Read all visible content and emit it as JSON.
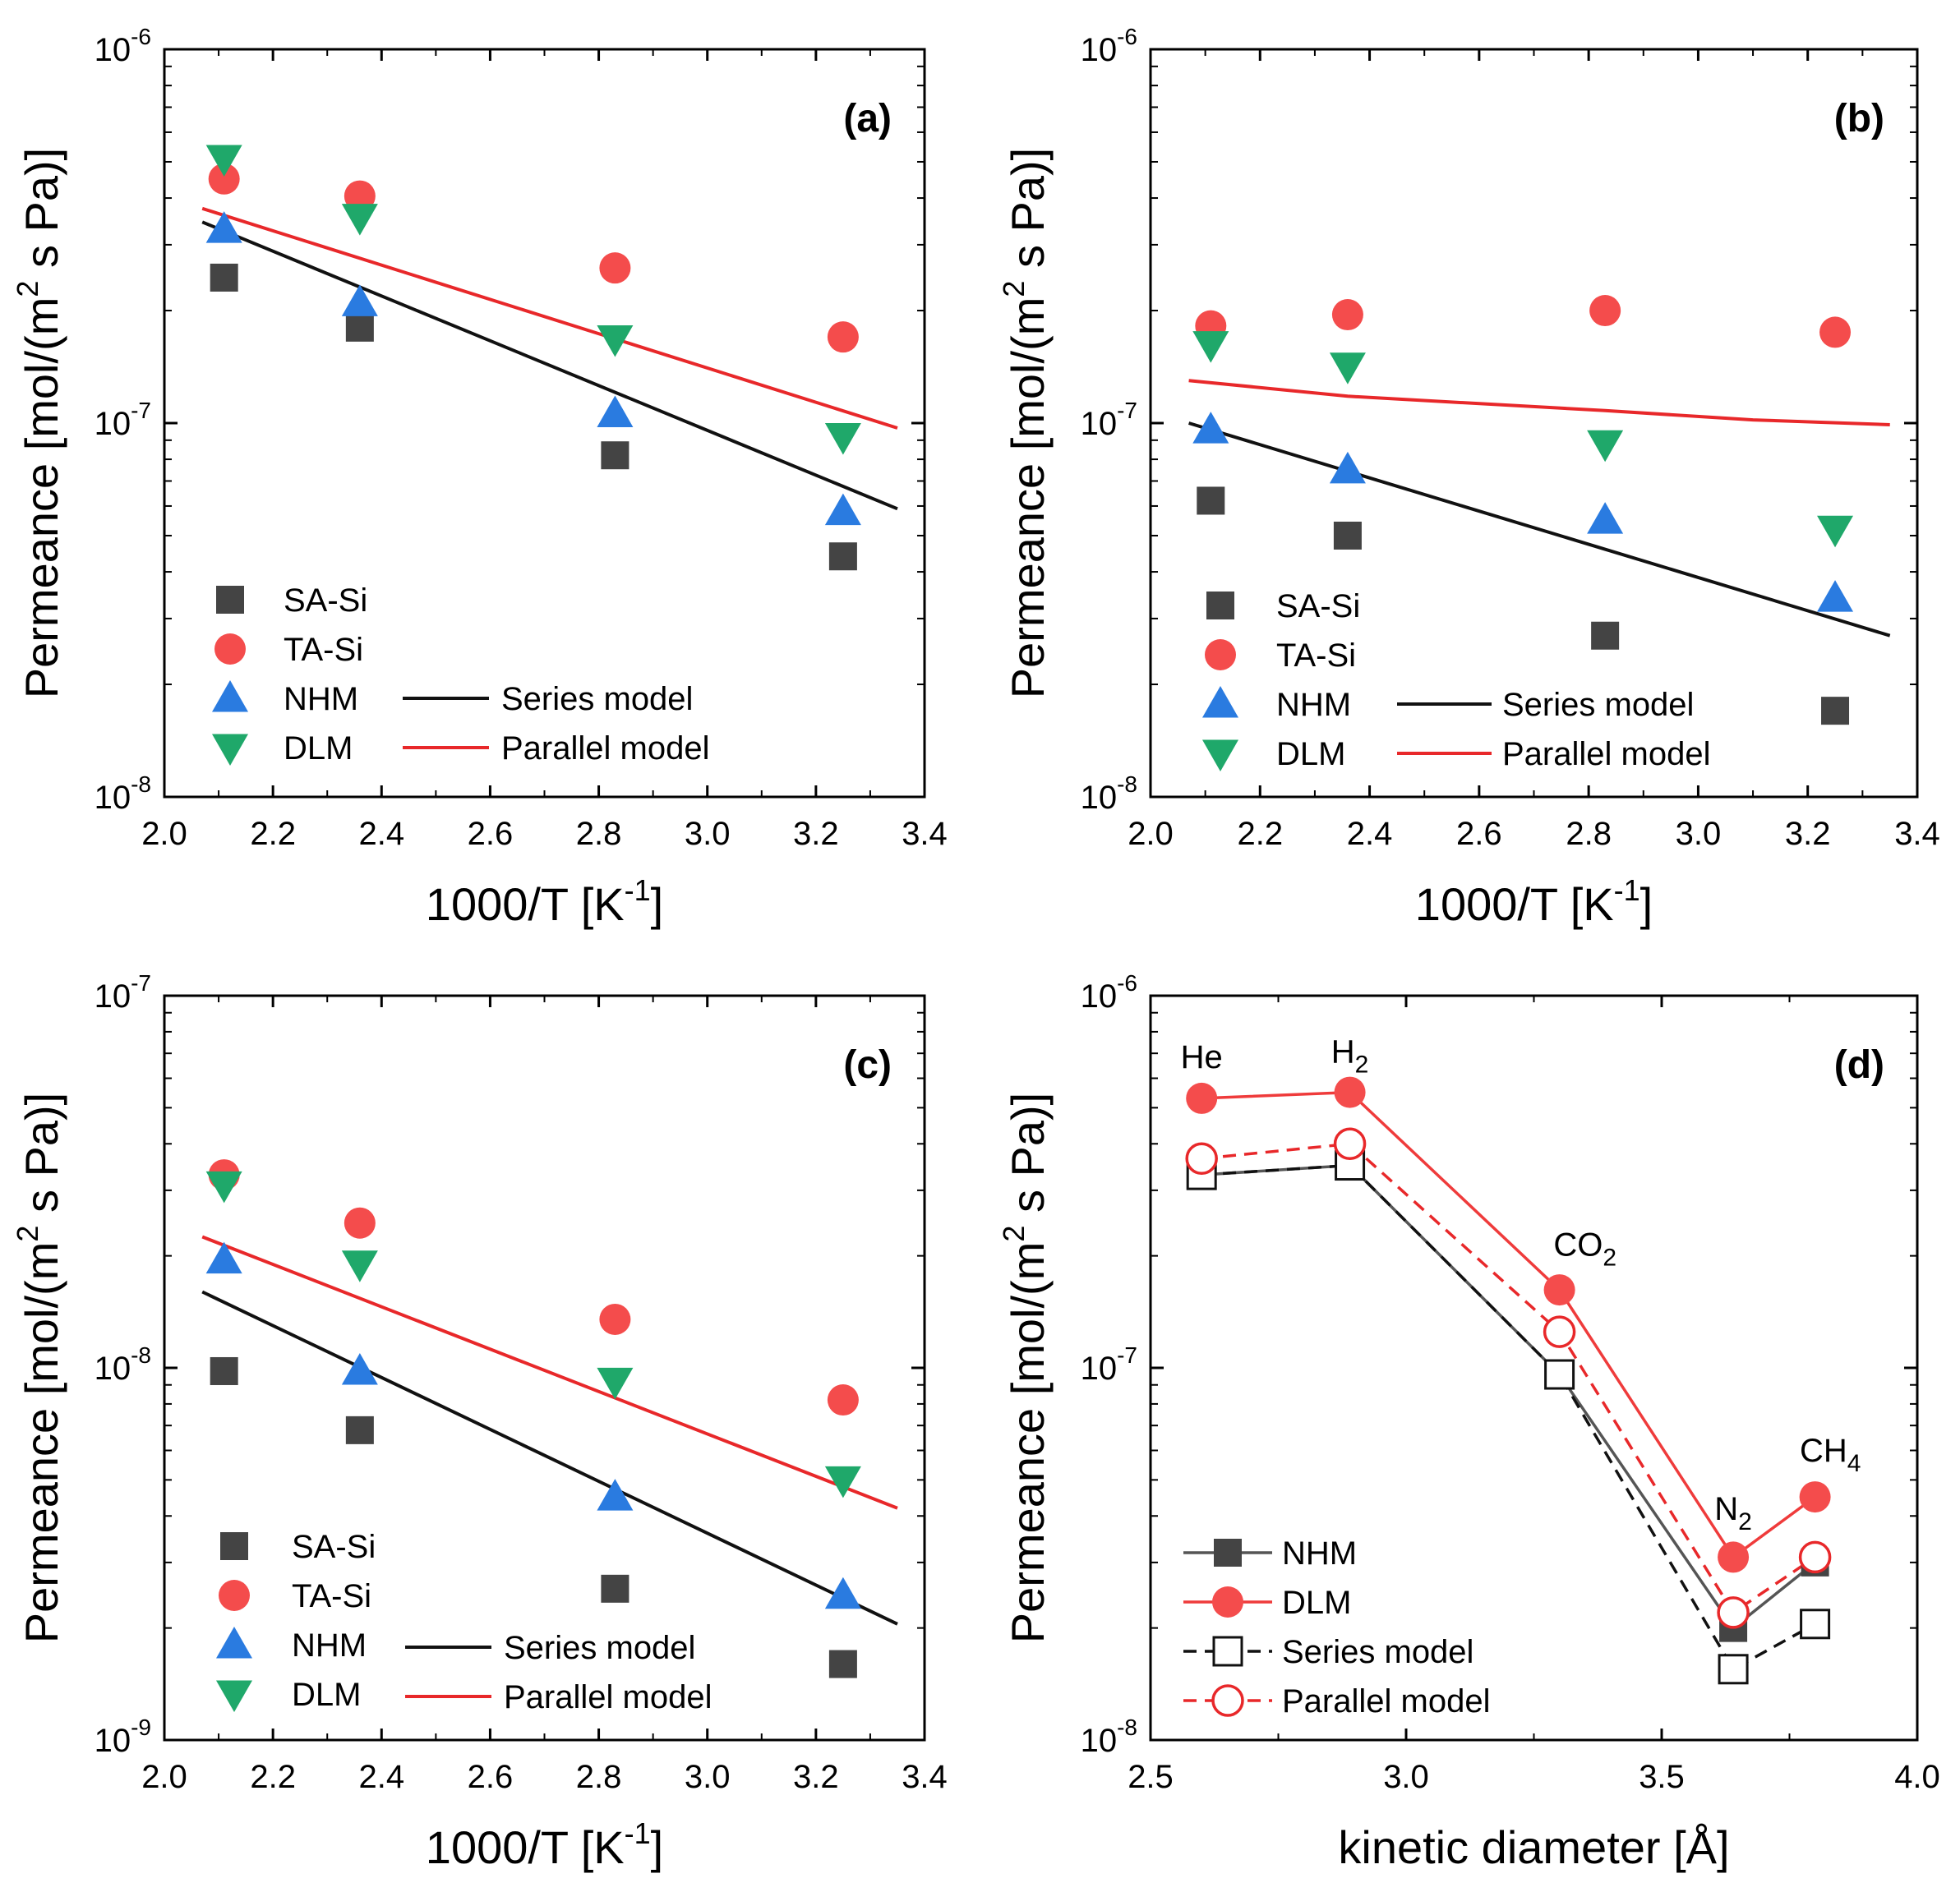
{
  "figure": {
    "panels": [
      {
        "id": "a",
        "panel_label": "(a)"
      },
      {
        "id": "b",
        "panel_label": "(b)"
      },
      {
        "id": "c",
        "panel_label": "(c)"
      },
      {
        "id": "d",
        "panel_label": "(d)"
      }
    ]
  },
  "colors": {
    "SA-Si": "#444444",
    "TA-Si": "#f44c4c",
    "NHM": "#2a7be0",
    "DLM": "#1fa86a",
    "series_line": "#111111",
    "parallel_line": "#e8282a",
    "nhm_line": "#555555",
    "dlm_line": "#ef3b3b"
  },
  "chart_data": [
    {
      "id": "a",
      "type": "scatter",
      "title": "(a)",
      "xlabel": "1000/T [K",
      "xlabel_sup": "-1",
      "xlabel_end": "]",
      "ylabel": "Permeance [mol/(m",
      "ylabel_sup": "2",
      "ylabel_end": " s Pa)]",
      "xlim": [
        2.0,
        3.4
      ],
      "ylim": [
        1e-08,
        1e-06
      ],
      "yscale": "log",
      "x_ticks": [
        "2.0",
        "2.2",
        "2.4",
        "2.6",
        "2.8",
        "3.0",
        "3.2",
        "3.4"
      ],
      "y_ticks": [
        {
          "base": "10",
          "exp": "-8"
        },
        {
          "base": "10",
          "exp": "-7"
        },
        {
          "base": "10",
          "exp": "-6"
        }
      ],
      "series": [
        {
          "name": "SA-Si",
          "marker": "square",
          "x": [
            2.11,
            2.36,
            2.83,
            3.25
          ],
          "y": [
            2.45e-07,
            1.8e-07,
            8.2e-08,
            4.4e-08
          ]
        },
        {
          "name": "TA-Si",
          "marker": "circle",
          "x": [
            2.11,
            2.36,
            2.83,
            3.25
          ],
          "y": [
            4.5e-07,
            4.05e-07,
            2.6e-07,
            1.7e-07
          ]
        },
        {
          "name": "NHM",
          "marker": "triangle-up",
          "x": [
            2.11,
            2.36,
            2.83,
            3.25
          ],
          "y": [
            3.3e-07,
            2.1e-07,
            1.06e-07,
            5.8e-08
          ]
        },
        {
          "name": "DLM",
          "marker": "triangle-down",
          "x": [
            2.11,
            2.36,
            2.83,
            3.25
          ],
          "y": [
            5.1e-07,
            3.55e-07,
            1.68e-07,
            9.2e-08
          ]
        },
        {
          "name": "Series model",
          "line": "series",
          "x": [
            2.07,
            3.35
          ],
          "y": [
            3.45e-07,
            5.9e-08
          ]
        },
        {
          "name": "Parallel model",
          "line": "parallel",
          "x": [
            2.07,
            3.35
          ],
          "y": [
            3.75e-07,
            9.7e-08
          ]
        }
      ],
      "legend": {
        "left": [
          "SA-Si",
          "TA-Si",
          "NHM",
          "DLM"
        ],
        "right": [
          "Series model",
          "Parallel model"
        ]
      }
    },
    {
      "id": "b",
      "type": "scatter",
      "title": "(b)",
      "xlabel": "1000/T [K",
      "xlabel_sup": "-1",
      "xlabel_end": "]",
      "ylabel": "Permeance [mol/(m",
      "ylabel_sup": "2",
      "ylabel_end": " s Pa)]",
      "xlim": [
        2.0,
        3.4
      ],
      "ylim": [
        1e-08,
        1e-06
      ],
      "yscale": "log",
      "x_ticks": [
        "2.0",
        "2.2",
        "2.4",
        "2.6",
        "2.8",
        "3.0",
        "3.2",
        "3.4"
      ],
      "y_ticks": [
        {
          "base": "10",
          "exp": "-8"
        },
        {
          "base": "10",
          "exp": "-7"
        },
        {
          "base": "10",
          "exp": "-6"
        }
      ],
      "series": [
        {
          "name": "SA-Si",
          "marker": "square",
          "x": [
            2.11,
            2.36,
            2.83,
            3.25
          ],
          "y": [
            6.2e-08,
            5e-08,
            2.7e-08,
            1.7e-08
          ]
        },
        {
          "name": "TA-Si",
          "marker": "circle",
          "x": [
            2.11,
            2.36,
            2.83,
            3.25
          ],
          "y": [
            1.82e-07,
            1.95e-07,
            2e-07,
            1.75e-07
          ]
        },
        {
          "name": "NHM",
          "marker": "triangle-up",
          "x": [
            2.11,
            2.36,
            2.83,
            3.25
          ],
          "y": [
            9.6e-08,
            7.5e-08,
            5.5e-08,
            3.4e-08
          ]
        },
        {
          "name": "DLM",
          "marker": "triangle-down",
          "x": [
            2.11,
            2.36,
            2.83,
            3.25
          ],
          "y": [
            1.62e-07,
            1.42e-07,
            8.8e-08,
            5.2e-08
          ]
        },
        {
          "name": "Series model",
          "line": "series",
          "x": [
            2.07,
            3.35
          ],
          "y": [
            1e-07,
            2.7e-08
          ]
        },
        {
          "name": "Parallel model",
          "line": "parallel",
          "x": [
            2.07,
            2.36,
            2.83,
            3.1,
            3.35
          ],
          "y": [
            1.3e-07,
            1.18e-07,
            1.08e-07,
            1.02e-07,
            9.9e-08
          ]
        }
      ],
      "legend": {
        "left": [
          "SA-Si",
          "TA-Si",
          "NHM",
          "DLM"
        ],
        "right": [
          "Series model",
          "Parallel model"
        ]
      }
    },
    {
      "id": "c",
      "type": "scatter",
      "title": "(c)",
      "xlabel": "1000/T [K",
      "xlabel_sup": "-1",
      "xlabel_end": "]",
      "ylabel": "Permeance [mol/(m",
      "ylabel_sup": "2",
      "ylabel_end": " s Pa)]",
      "xlim": [
        2.0,
        3.4
      ],
      "ylim": [
        1e-09,
        1e-07
      ],
      "yscale": "log",
      "x_ticks": [
        "2.0",
        "2.2",
        "2.4",
        "2.6",
        "2.8",
        "3.0",
        "3.2",
        "3.4"
      ],
      "y_ticks": [
        {
          "base": "10",
          "exp": "-9"
        },
        {
          "base": "10",
          "exp": "-8"
        },
        {
          "base": "10",
          "exp": "-7"
        }
      ],
      "series": [
        {
          "name": "SA-Si",
          "marker": "square",
          "x": [
            2.11,
            2.36,
            2.83,
            3.25
          ],
          "y": [
            9.8e-09,
            6.8e-09,
            2.55e-09,
            1.6e-09
          ]
        },
        {
          "name": "TA-Si",
          "marker": "circle",
          "x": [
            2.11,
            2.36,
            2.83,
            3.25
          ],
          "y": [
            3.3e-08,
            2.45e-08,
            1.35e-08,
            8.2e-09
          ]
        },
        {
          "name": "NHM",
          "marker": "triangle-up",
          "x": [
            2.11,
            2.36,
            2.83,
            3.25
          ],
          "y": [
            1.95e-08,
            9.8e-09,
            4.5e-09,
            2.45e-09
          ]
        },
        {
          "name": "DLM",
          "marker": "triangle-down",
          "x": [
            2.11,
            2.36,
            2.83,
            3.25
          ],
          "y": [
            3.1e-08,
            1.9e-08,
            9.2e-09,
            5e-09
          ]
        },
        {
          "name": "Series model",
          "line": "series",
          "x": [
            2.07,
            3.35
          ],
          "y": [
            1.6e-08,
            2.05e-09
          ]
        },
        {
          "name": "Parallel model",
          "line": "parallel",
          "x": [
            2.07,
            3.35
          ],
          "y": [
            2.25e-08,
            4.2e-09
          ]
        }
      ],
      "legend": {
        "left": [
          "SA-Si",
          "TA-Si",
          "NHM",
          "DLM"
        ],
        "right": [
          "Series model",
          "Parallel model"
        ]
      }
    },
    {
      "id": "d",
      "type": "line",
      "title": "(d)",
      "xlabel": "kinetic diameter [Å]",
      "ylabel": "Permeance [mol/(m",
      "ylabel_sup": "2",
      "ylabel_end": " s Pa)]",
      "xlim": [
        2.5,
        4.0
      ],
      "ylim": [
        1e-08,
        1e-06
      ],
      "yscale": "log",
      "x_ticks": [
        "2.5",
        "3.0",
        "3.5",
        "4.0"
      ],
      "y_ticks": [
        {
          "base": "10",
          "exp": "-8"
        },
        {
          "base": "10",
          "exp": "-7"
        },
        {
          "base": "10",
          "exp": "-6"
        }
      ],
      "x": [
        2.6,
        2.89,
        3.3,
        3.64,
        3.8
      ],
      "series": [
        {
          "name": "NHM",
          "marker": "square",
          "style": "solid-gray",
          "y": [
            3.3e-07,
            3.5e-07,
            9.6e-08,
            2e-08,
            3e-08
          ]
        },
        {
          "name": "DLM",
          "marker": "circle",
          "style": "solid-red",
          "y": [
            5.3e-07,
            5.5e-07,
            1.62e-07,
            3.1e-08,
            4.5e-08
          ]
        },
        {
          "name": "Series model",
          "marker": "square-open",
          "style": "dashed-black",
          "y": [
            3.3e-07,
            3.5e-07,
            9.6e-08,
            1.55e-08,
            2.05e-08
          ]
        },
        {
          "name": "Parallel model",
          "marker": "circle-open",
          "style": "dashed-red",
          "y": [
            3.65e-07,
            4e-07,
            1.25e-07,
            2.2e-08,
            3.1e-08
          ]
        }
      ],
      "annotations": [
        {
          "x": 2.6,
          "y": 6.4e-07,
          "text": "He",
          "sub": ""
        },
        {
          "x": 2.89,
          "y": 6.6e-07,
          "text": "H",
          "sub": "2"
        },
        {
          "x": 3.35,
          "y": 2e-07,
          "text": "CO",
          "sub": "2"
        },
        {
          "x": 3.64,
          "y": 3.9e-08,
          "text": "N",
          "sub": "2"
        },
        {
          "x": 3.83,
          "y": 5.6e-08,
          "text": "CH",
          "sub": "4"
        }
      ],
      "legend": [
        "NHM",
        "DLM",
        "Series model",
        "Parallel model"
      ]
    }
  ]
}
